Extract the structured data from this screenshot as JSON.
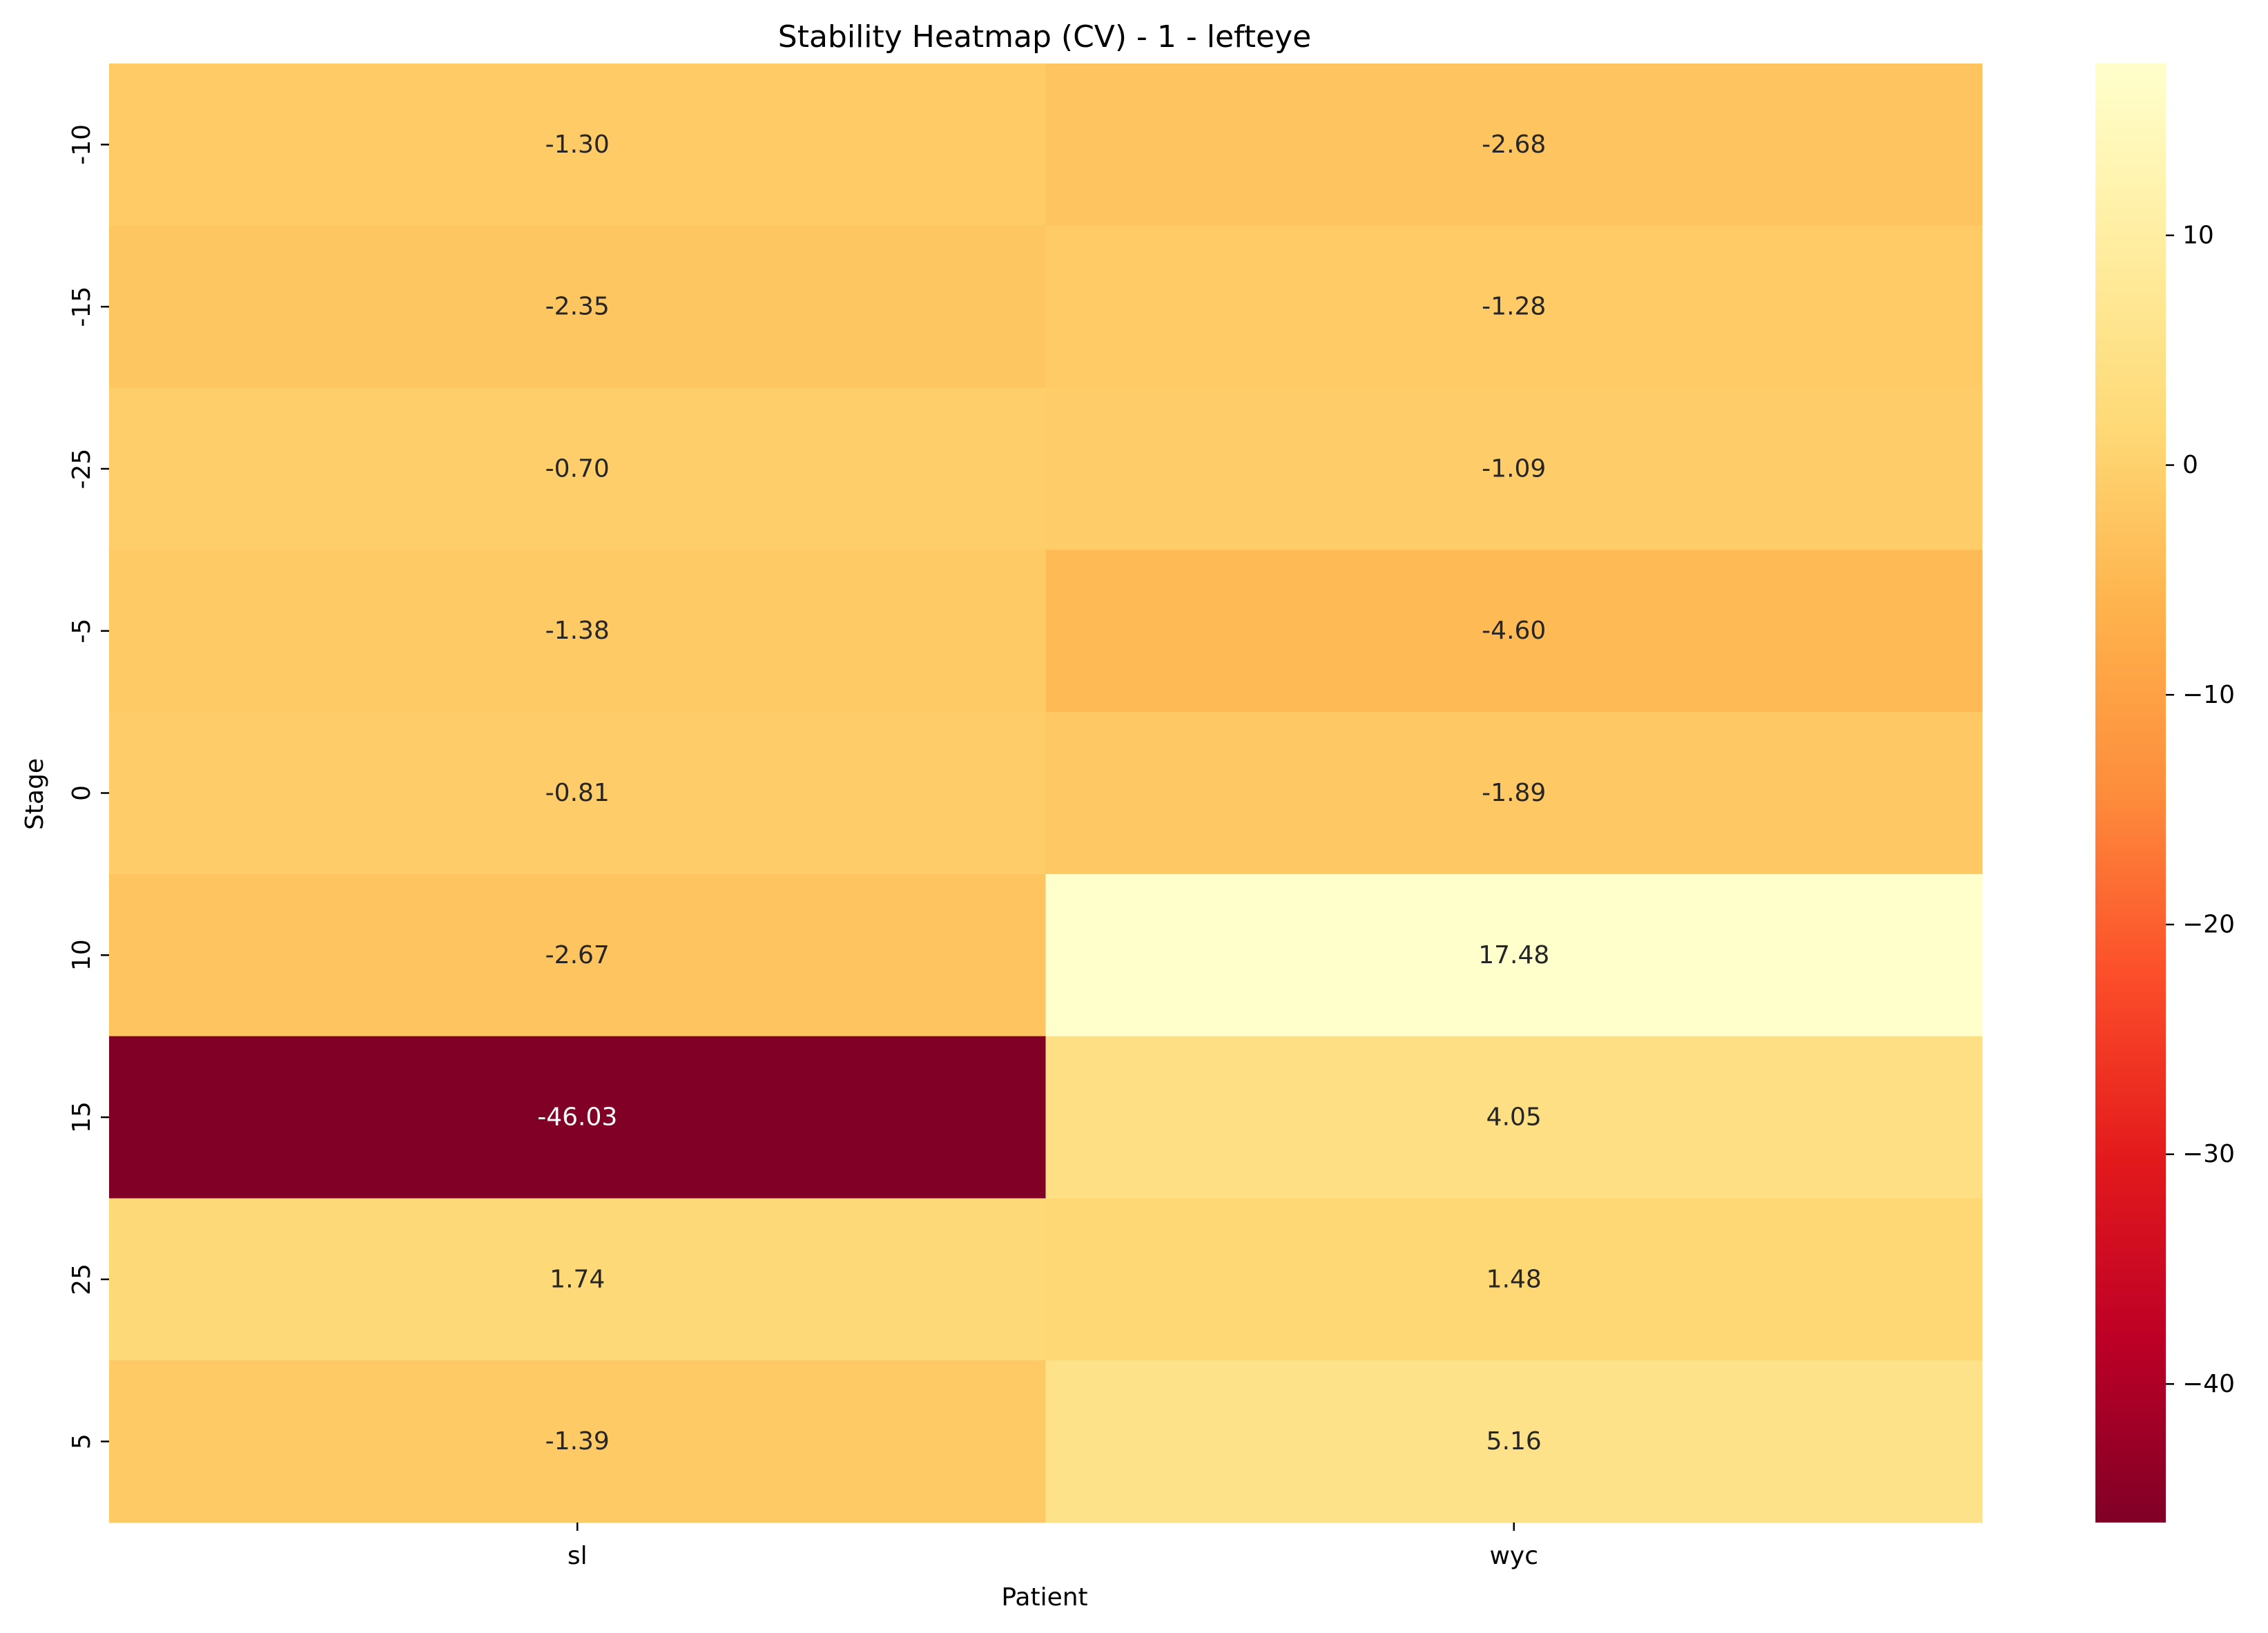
{
  "chart_data": {
    "type": "heatmap",
    "title": "Stability Heatmap (CV) - 1 - lefteye",
    "xlabel": "Patient",
    "ylabel": "Stage",
    "x": [
      "sl",
      "wyc"
    ],
    "y": [
      "-10",
      "-15",
      "-25",
      "-5",
      "0",
      "10",
      "15",
      "25",
      "5"
    ],
    "values": [
      [
        -1.3,
        -2.68
      ],
      [
        -2.35,
        -1.28
      ],
      [
        -0.7,
        -1.09
      ],
      [
        -1.38,
        -4.6
      ],
      [
        -0.81,
        -1.89
      ],
      [
        -2.67,
        17.48
      ],
      [
        -46.03,
        4.05
      ],
      [
        1.74,
        1.48
      ],
      [
        -1.39,
        5.16
      ]
    ],
    "value_labels": [
      [
        "-1.30",
        "-2.68"
      ],
      [
        "-2.35",
        "-1.28"
      ],
      [
        "-0.70",
        "-1.09"
      ],
      [
        "-1.38",
        "-4.60"
      ],
      [
        "-0.81",
        "-1.89"
      ],
      [
        "-2.67",
        "17.48"
      ],
      [
        "-46.03",
        "4.05"
      ],
      [
        "1.74",
        "1.48"
      ],
      [
        "-1.39",
        "5.16"
      ]
    ],
    "colormap": "YlOrRd_r",
    "colorbar": {
      "vmin": -46.03,
      "vmax": 17.48,
      "ticks": [
        10,
        0,
        -10,
        -20,
        -30,
        -40
      ],
      "tick_labels": [
        "10",
        "0",
        "−10",
        "−20",
        "−30",
        "−40"
      ]
    },
    "grid": false,
    "legend": "colorbar-right"
  }
}
